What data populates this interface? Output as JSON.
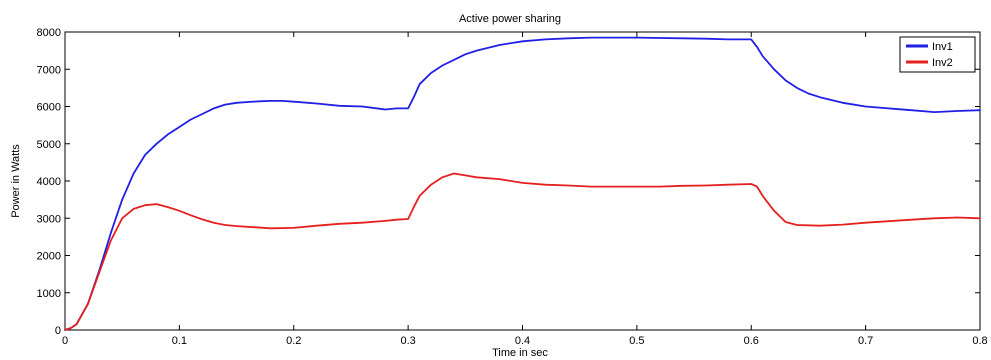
{
  "chart_data": {
    "type": "line",
    "title": "Active power sharing",
    "xlabel": "Time in sec",
    "ylabel": "Power in Watts",
    "xlim": [
      0,
      0.8
    ],
    "ylim": [
      0,
      8000
    ],
    "xticks": [
      0,
      0.1,
      0.2,
      0.3,
      0.4,
      0.5,
      0.6,
      0.7,
      0.8
    ],
    "xtick_labels": [
      "0",
      "0.1",
      "0.2",
      "0.3",
      "0.4",
      "0.5",
      "0.6",
      "0.7",
      "0.8"
    ],
    "yticks": [
      0,
      1000,
      2000,
      3000,
      4000,
      5000,
      6000,
      7000,
      8000
    ],
    "ytick_labels": [
      "0",
      "1000",
      "2000",
      "3000",
      "4000",
      "5000",
      "6000",
      "7000",
      "8000"
    ],
    "grid": false,
    "legend_position": "top-right",
    "series": [
      {
        "name": "Inv1",
        "color": "#1f1fe6",
        "x": [
          0,
          0.005,
          0.01,
          0.02,
          0.03,
          0.04,
          0.05,
          0.06,
          0.07,
          0.08,
          0.09,
          0.1,
          0.11,
          0.12,
          0.13,
          0.14,
          0.15,
          0.16,
          0.17,
          0.18,
          0.19,
          0.2,
          0.22,
          0.24,
          0.26,
          0.28,
          0.29,
          0.3,
          0.305,
          0.31,
          0.32,
          0.33,
          0.34,
          0.35,
          0.36,
          0.38,
          0.4,
          0.42,
          0.44,
          0.46,
          0.48,
          0.5,
          0.52,
          0.54,
          0.56,
          0.58,
          0.6,
          0.605,
          0.61,
          0.62,
          0.63,
          0.64,
          0.65,
          0.66,
          0.68,
          0.7,
          0.72,
          0.74,
          0.76,
          0.78,
          0.8
        ],
        "y": [
          0,
          50,
          150,
          700,
          1600,
          2600,
          3500,
          4200,
          4700,
          5000,
          5250,
          5450,
          5650,
          5800,
          5950,
          6050,
          6100,
          6120,
          6140,
          6150,
          6150,
          6130,
          6080,
          6020,
          6000,
          5920,
          5950,
          5950,
          6250,
          6600,
          6900,
          7100,
          7250,
          7400,
          7500,
          7650,
          7750,
          7800,
          7830,
          7850,
          7850,
          7850,
          7840,
          7830,
          7820,
          7800,
          7800,
          7600,
          7350,
          7000,
          6700,
          6500,
          6350,
          6250,
          6100,
          6000,
          5950,
          5900,
          5850,
          5880,
          5900
        ]
      },
      {
        "name": "Inv2",
        "color": "#e61f1f",
        "x": [
          0,
          0.005,
          0.01,
          0.02,
          0.03,
          0.04,
          0.05,
          0.06,
          0.07,
          0.08,
          0.09,
          0.1,
          0.11,
          0.12,
          0.13,
          0.14,
          0.15,
          0.16,
          0.18,
          0.2,
          0.22,
          0.24,
          0.26,
          0.28,
          0.29,
          0.3,
          0.305,
          0.31,
          0.32,
          0.33,
          0.34,
          0.35,
          0.36,
          0.38,
          0.4,
          0.42,
          0.44,
          0.46,
          0.48,
          0.5,
          0.52,
          0.54,
          0.56,
          0.58,
          0.6,
          0.605,
          0.61,
          0.62,
          0.63,
          0.64,
          0.66,
          0.68,
          0.7,
          0.72,
          0.74,
          0.76,
          0.78,
          0.8
        ],
        "y": [
          0,
          50,
          150,
          700,
          1550,
          2400,
          3000,
          3250,
          3350,
          3380,
          3300,
          3200,
          3080,
          2970,
          2880,
          2820,
          2790,
          2770,
          2730,
          2740,
          2800,
          2850,
          2880,
          2930,
          2960,
          2980,
          3300,
          3600,
          3900,
          4100,
          4200,
          4150,
          4100,
          4050,
          3950,
          3900,
          3880,
          3850,
          3850,
          3850,
          3850,
          3870,
          3880,
          3900,
          3920,
          3850,
          3600,
          3200,
          2900,
          2820,
          2800,
          2830,
          2880,
          2920,
          2960,
          3000,
          3020,
          3000
        ]
      }
    ]
  }
}
